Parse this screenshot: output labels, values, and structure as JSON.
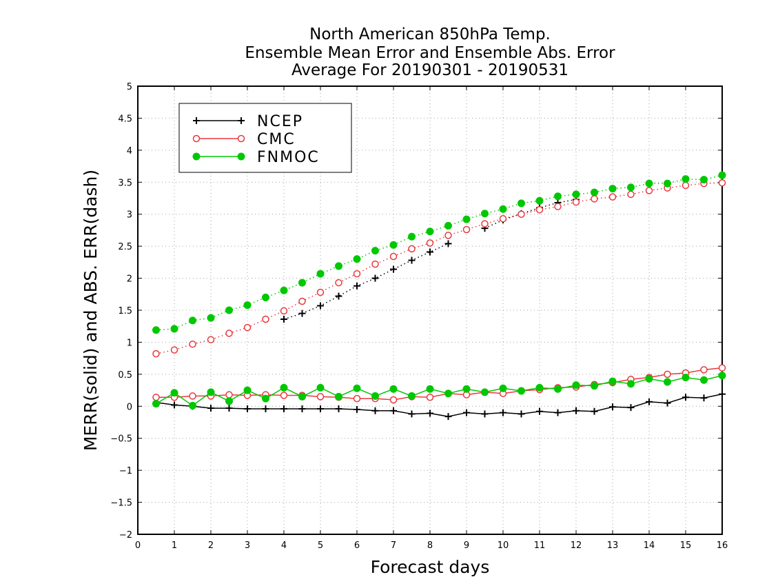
{
  "title_lines": [
    "North American 850hPa Temp.",
    "Ensemble Mean Error and Ensemble Abs. Error",
    "Average For 20190301 - 20190531"
  ],
  "colors": {
    "ncep": "#000000",
    "cmc": "#e8383c",
    "fnmoc": "#00c800",
    "grid": "#a0a0a0"
  },
  "chart_data": {
    "type": "line",
    "title": "North American 850hPa Temp. Ensemble Mean Error and Ensemble Abs. Error Average For 20190301 - 20190531",
    "xlabel": "Forecast days",
    "ylabel": "MERR(solid) and ABS. ERR(dash)",
    "xlim": [
      0,
      16
    ],
    "ylim": [
      -2,
      5
    ],
    "xticks": [
      "0",
      "1",
      "2",
      "3",
      "4",
      "5",
      "6",
      "7",
      "8",
      "9",
      "10",
      "11",
      "12",
      "13",
      "14",
      "15",
      "16"
    ],
    "yticks": [
      "−2",
      "−1.5",
      "−1",
      "−0.5",
      "0",
      "0.5",
      "1",
      "1.5",
      "2",
      "2.5",
      "3",
      "3.5",
      "4",
      "4.5",
      "5"
    ],
    "grid": true,
    "legend_position": "top-left",
    "x": [
      0.5,
      1,
      1.5,
      2,
      2.5,
      3,
      3.5,
      4,
      4.5,
      5,
      5.5,
      6,
      6.5,
      7,
      7.5,
      8,
      8.5,
      9,
      9.5,
      10,
      10.5,
      11,
      11.5,
      12,
      12.5,
      13,
      13.5,
      14,
      14.5,
      15,
      15.5,
      16
    ],
    "series": [
      {
        "name": "NCEP",
        "marker": "plus",
        "mean_error": [
          0.06,
          0.02,
          0.0,
          -0.03,
          -0.03,
          -0.04,
          -0.04,
          -0.04,
          -0.04,
          -0.04,
          -0.04,
          -0.05,
          -0.07,
          -0.07,
          -0.12,
          -0.11,
          -0.16,
          -0.1,
          -0.12,
          -0.1,
          -0.12,
          -0.08,
          -0.1,
          -0.07,
          -0.08,
          -0.01,
          -0.02,
          0.07,
          0.05,
          0.14,
          0.13,
          0.19
        ],
        "abs_error": [
          null,
          null,
          null,
          null,
          null,
          null,
          null,
          1.36,
          1.45,
          1.57,
          1.72,
          1.88,
          2.0,
          2.14,
          2.28,
          2.41,
          2.54,
          null,
          2.78,
          2.91,
          3.01,
          3.1,
          3.18,
          3.23,
          null,
          null,
          null,
          null,
          null,
          null,
          null,
          null
        ]
      },
      {
        "name": "CMC",
        "marker": "open-circle",
        "mean_error": [
          0.14,
          0.14,
          0.16,
          0.16,
          0.18,
          0.17,
          0.18,
          0.17,
          0.17,
          0.15,
          0.14,
          0.12,
          0.12,
          0.1,
          0.15,
          0.14,
          0.2,
          0.18,
          0.22,
          0.2,
          0.24,
          0.26,
          0.29,
          0.3,
          0.34,
          0.37,
          0.42,
          0.45,
          0.5,
          0.52,
          0.57,
          0.6
        ],
        "abs_error": [
          0.82,
          0.88,
          0.97,
          1.04,
          1.14,
          1.23,
          1.36,
          1.49,
          1.64,
          1.78,
          1.93,
          2.07,
          2.22,
          2.34,
          2.46,
          2.55,
          2.67,
          2.76,
          2.85,
          2.93,
          3.0,
          3.07,
          3.12,
          3.19,
          3.24,
          3.27,
          3.31,
          3.37,
          3.41,
          3.45,
          3.48,
          3.49
        ]
      },
      {
        "name": "FNMOC",
        "marker": "filled-circle",
        "mean_error": [
          0.04,
          0.21,
          0.01,
          0.22,
          0.08,
          0.25,
          0.12,
          0.29,
          0.15,
          0.29,
          0.15,
          0.28,
          0.16,
          0.27,
          0.16,
          0.27,
          0.2,
          0.27,
          0.22,
          0.28,
          0.24,
          0.29,
          0.27,
          0.33,
          0.32,
          0.39,
          0.35,
          0.43,
          0.38,
          0.45,
          0.41,
          0.48
        ],
        "abs_error": [
          1.19,
          1.21,
          1.34,
          1.38,
          1.5,
          1.58,
          1.7,
          1.81,
          1.93,
          2.07,
          2.19,
          2.3,
          2.43,
          2.52,
          2.65,
          2.73,
          2.82,
          2.92,
          3.01,
          3.08,
          3.17,
          3.21,
          3.28,
          3.31,
          3.34,
          3.4,
          3.42,
          3.48,
          3.48,
          3.55,
          3.54,
          3.61
        ]
      }
    ]
  }
}
